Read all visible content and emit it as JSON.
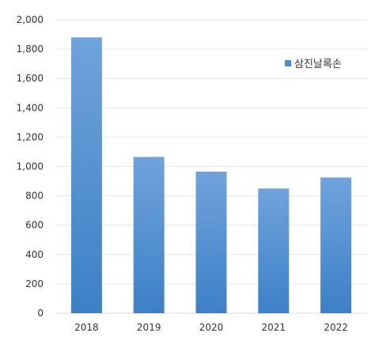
{
  "chart_data": {
    "type": "bar",
    "categories": [
      "2018",
      "2019",
      "2020",
      "2021",
      "2022"
    ],
    "series": [
      {
        "name": "삼진날록손",
        "values": [
          1880,
          1065,
          965,
          850,
          925
        ]
      }
    ],
    "ylim": [
      0,
      2000
    ],
    "yticks": [
      0,
      200,
      400,
      600,
      800,
      1000,
      1200,
      1400,
      1600,
      1800,
      2000
    ],
    "ytick_labels": [
      "0",
      "200",
      "400",
      "600",
      "800",
      "1,000",
      "1,200",
      "1,400",
      "1,600",
      "1,800",
      "2,000"
    ],
    "grid": true,
    "legend_position": "top-right",
    "colors": {
      "bar_top": "#6fa3dc",
      "bar_bottom": "#3d80c6",
      "legend": "#4a8bd0"
    }
  }
}
